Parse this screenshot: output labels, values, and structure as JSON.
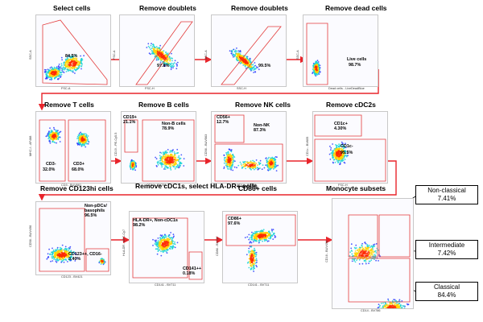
{
  "panels": [
    {
      "title": "Select cells",
      "xlabel": "FSC-A",
      "ylabel": "SSC-A",
      "gates": [
        "84.5%"
      ]
    },
    {
      "title": "Remove doublets",
      "xlabel": "FSC-H",
      "ylabel": "FSC-A",
      "gates": [
        "97.8%"
      ]
    },
    {
      "title": "Remove doublets",
      "xlabel": "SSC-H",
      "ylabel": "SSC-A",
      "gates": [
        "99.5%"
      ]
    },
    {
      "title": "Remove dead cells",
      "xlabel": "Dead cells - LiveDeadBlue",
      "ylabel": "SSC-A",
      "gates": [
        "Live cells",
        "98.7%"
      ]
    },
    {
      "title": "Remove T cells",
      "xlabel": "CD3 - BUV661",
      "ylabel": "MHC-I - AF488",
      "gates": [
        "CD3-",
        "32.0%",
        "CD3+",
        "68.0%"
      ]
    },
    {
      "title": "Remove B cells",
      "xlabel": "CD14 - BV786",
      "ylabel": "CD19 - PE-Cy5.5",
      "gates": [
        "CD19+",
        "21.1%",
        "Non-B cells",
        "78.9%"
      ]
    },
    {
      "title": "Remove NK cells",
      "xlabel": "CD14 - BV786",
      "ylabel": "CD56 - BUV563",
      "gates": [
        "CD56+",
        "12.7%",
        "Non-NK",
        "87.3%"
      ]
    },
    {
      "title": "Remove cDC2s",
      "xlabel": "FSC-H",
      "ylabel": "CD1c - BV605",
      "gates": [
        "CD1c+",
        "4.30%",
        "CD1c-",
        "95.5%"
      ]
    },
    {
      "title": "Remove CD123hi cells",
      "xlabel": "CD123 - BV421",
      "ylabel": "CD56 - BUV496",
      "gates": [
        "Non-pDCs/",
        "basophils",
        "96.5%",
        "CD123++, CD16-",
        "3.40%"
      ]
    },
    {
      "title": "Remove cDC1s, select HLA-DR+ cells",
      "xlabel": "CD141 - BV711",
      "ylabel": "HLA-DR - APC-Cy7",
      "gates": [
        "HLA-DR+, Non-cDC1s",
        "98.2%",
        "CD141++",
        "0.18%"
      ]
    },
    {
      "title": "CD86+ cells",
      "xlabel": "CD141 - BV711",
      "ylabel": "CD86 - BV737",
      "gates": [
        "CD86+",
        "97.6%"
      ]
    },
    {
      "title": "Monocyte subsets",
      "xlabel": "CD14 - BV786",
      "ylabel": "CD16 - BUV496",
      "gates": [
        "Non-classical",
        "7.41%",
        "Intermediate",
        "7.42%",
        "Classical",
        "84.4%"
      ]
    }
  ],
  "colors": {
    "arrow": "#e8252b",
    "gate": "#e33b3b",
    "cloud_low": "#2a3cff",
    "cloud_mid": "#19d4d4",
    "cloud_high": "#ffd400",
    "cloud_core": "#ff2a00"
  },
  "icons": [
    "flow-arrow-icon"
  ]
}
